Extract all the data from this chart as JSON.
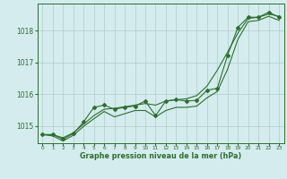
{
  "x": [
    0,
    1,
    2,
    3,
    4,
    5,
    6,
    7,
    8,
    9,
    10,
    11,
    12,
    13,
    14,
    15,
    16,
    17,
    18,
    19,
    20,
    21,
    22,
    23
  ],
  "line_marked": [
    1014.72,
    1014.72,
    1014.58,
    1014.75,
    1015.12,
    1015.58,
    1015.65,
    1015.52,
    1015.58,
    1015.62,
    1015.78,
    1015.32,
    1015.78,
    1015.82,
    1015.78,
    1015.8,
    1016.12,
    1016.18,
    1017.22,
    1018.1,
    1018.42,
    1018.42,
    1018.58,
    1018.42
  ],
  "line_upper": [
    1014.72,
    1014.72,
    1014.62,
    1014.78,
    1015.05,
    1015.32,
    1015.52,
    1015.55,
    1015.6,
    1015.65,
    1015.7,
    1015.65,
    1015.78,
    1015.82,
    1015.85,
    1015.95,
    1016.25,
    1016.75,
    1017.32,
    1017.92,
    1018.38,
    1018.42,
    1018.52,
    1018.45
  ],
  "line_lower": [
    1014.72,
    1014.68,
    1014.52,
    1014.7,
    1014.98,
    1015.22,
    1015.45,
    1015.28,
    1015.38,
    1015.48,
    1015.48,
    1015.28,
    1015.48,
    1015.58,
    1015.58,
    1015.62,
    1015.88,
    1016.08,
    1016.78,
    1017.72,
    1018.28,
    1018.32,
    1018.45,
    1018.32
  ],
  "ylim_min": 1014.45,
  "ylim_max": 1018.85,
  "yticks": [
    1015,
    1016,
    1017,
    1018
  ],
  "xlabel": "Graphe pression niveau de la mer (hPa)",
  "line_color": "#2d6e2d",
  "bg_color": "#d4ecee",
  "grid_color": "#b0cccc",
  "marker": "D",
  "marker_size": 2.0,
  "linewidth": 0.8
}
